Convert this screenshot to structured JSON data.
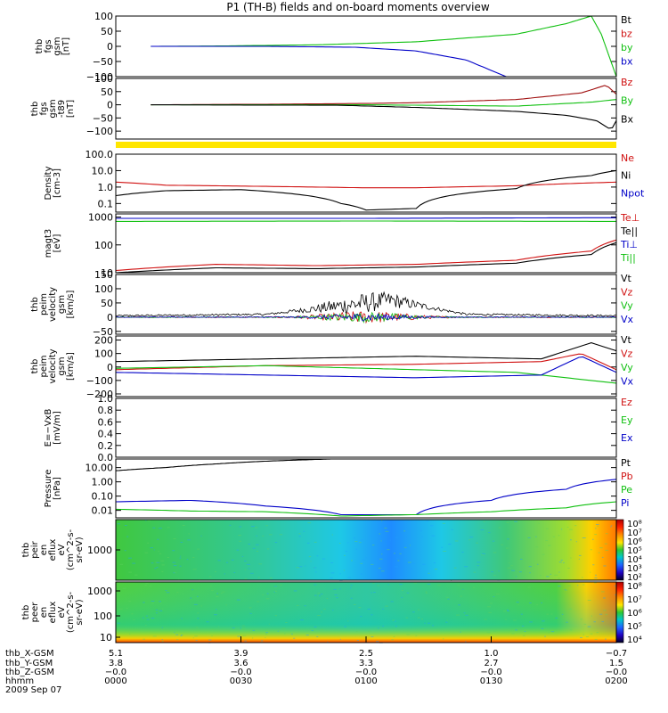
{
  "title": "P1 (TH-B) fields and on-board moments overview",
  "chart_data": [
    {
      "type": "line",
      "ylabel": [
        "thb",
        "fgs",
        "gsm",
        "[nT]"
      ],
      "ylim": [
        -100,
        100
      ],
      "yticks": [
        "100",
        "50",
        "0",
        "−50",
        "−100"
      ],
      "ytick_values": [
        100,
        50,
        0,
        -50,
        -100
      ],
      "legend": [
        {
          "name": "Bt",
          "color": "#000000"
        },
        {
          "name": "bz",
          "color": "#d01010"
        },
        {
          "name": "by",
          "color": "#10c010"
        },
        {
          "name": "bx",
          "color": "#0000c8"
        }
      ],
      "series": [
        {
          "name": "by",
          "color": "#10c010",
          "x": [
            0.07,
            0.2,
            0.4,
            0.6,
            0.8,
            0.9,
            0.95
          ],
          "y": [
            0,
            1,
            5,
            15,
            40,
            75,
            100
          ]
        },
        {
          "name": "bx",
          "color": "#0000c8",
          "x": [
            0.07,
            0.3,
            0.48,
            0.6,
            0.7,
            0.78
          ],
          "y": [
            0,
            0,
            -3,
            -15,
            -45,
            -100
          ]
        },
        {
          "name": "by",
          "color": "#10c010",
          "x": [
            0.95,
            0.97,
            1.0
          ],
          "y": [
            100,
            40,
            -100
          ]
        }
      ]
    },
    {
      "type": "line",
      "ylabel": [
        "thb",
        "fgs",
        "gsm",
        "-t89",
        "[nT]"
      ],
      "ylim": [
        -130,
        100
      ],
      "yticks": [
        "100",
        "50",
        "0",
        "−50",
        "−100"
      ],
      "ytick_values": [
        100,
        50,
        0,
        -50,
        -100
      ],
      "legend": [
        {
          "name": "Bz",
          "color": "#d01010"
        },
        {
          "name": "By",
          "color": "#10c010"
        },
        {
          "name": "Bx",
          "color": "#000000"
        }
      ],
      "series": [
        {
          "name": "Bz",
          "color": "#a01010",
          "x": [
            0.07,
            0.3,
            0.5,
            0.6,
            0.8,
            0.93,
            0.98,
            1.0
          ],
          "y": [
            0,
            2,
            5,
            8,
            20,
            45,
            75,
            40
          ]
        },
        {
          "name": "By",
          "color": "#10c010",
          "x": [
            0.07,
            0.5,
            0.8,
            0.95,
            1.0
          ],
          "y": [
            0,
            0,
            -5,
            10,
            20
          ]
        },
        {
          "name": "Bx",
          "color": "#000000",
          "x": [
            0.07,
            0.45,
            0.6,
            0.8,
            0.9,
            0.96,
            0.99,
            1.0
          ],
          "y": [
            0,
            -2,
            -10,
            -25,
            -40,
            -60,
            -95,
            -60
          ]
        }
      ],
      "quality_bar_color": "#ffe600"
    },
    {
      "type": "line",
      "yscale": "log",
      "ylabel": [
        "Density",
        "[cm-3]"
      ],
      "ylim": [
        0.03,
        100
      ],
      "yticks": [
        "100.0",
        "10.0",
        "1.0",
        "0.1"
      ],
      "ytick_values": [
        100,
        10,
        1,
        0.1
      ],
      "legend": [
        {
          "name": "Ne",
          "color": "#d01010"
        },
        {
          "name": "Ni",
          "color": "#000000"
        },
        {
          "name": "Npot",
          "color": "#0000c8"
        }
      ],
      "series": [
        {
          "name": "Ne",
          "color": "#d01010",
          "x": [
            0.0,
            0.1,
            0.3,
            0.5,
            0.6,
            0.8,
            1.0
          ],
          "y": [
            2.0,
            1.3,
            1.1,
            0.9,
            0.9,
            1.2,
            2.0
          ]
        },
        {
          "name": "Ni",
          "color": "#000000",
          "x": [
            0.0,
            0.1,
            0.25,
            0.35,
            0.45,
            0.5,
            0.6,
            0.8,
            0.95,
            1.0
          ],
          "y": [
            0.3,
            0.6,
            0.7,
            0.4,
            0.1,
            0.04,
            0.05,
            0.8,
            5,
            10
          ]
        }
      ]
    },
    {
      "type": "line",
      "yscale": "log",
      "ylabel": [
        "magt3",
        "[eV]"
      ],
      "ylim": [
        10,
        1300
      ],
      "yticks": [
        "1000",
        "100",
        "10"
      ],
      "ytick_values": [
        1000,
        100,
        10
      ],
      "legend": [
        {
          "name": "Te⊥",
          "color": "#d01010"
        },
        {
          "name": "Te||",
          "color": "#000000"
        },
        {
          "name": "Ti⊥",
          "color": "#0000c8"
        },
        {
          "name": "Ti||",
          "color": "#10c010"
        }
      ],
      "series": [
        {
          "name": "Ti⊥",
          "color": "#0000c8",
          "x": [
            0.0,
            0.5,
            1.0
          ],
          "y": [
            900,
            900,
            950
          ]
        },
        {
          "name": "Ti||",
          "color": "#10c010",
          "x": [
            0.0,
            0.5,
            1.0
          ],
          "y": [
            700,
            720,
            700
          ]
        },
        {
          "name": "Te⊥",
          "color": "#d01010",
          "x": [
            0.0,
            0.2,
            0.4,
            0.6,
            0.8,
            0.95,
            1.0
          ],
          "y": [
            12,
            20,
            18,
            20,
            28,
            60,
            150
          ]
        },
        {
          "name": "Te||",
          "color": "#000000",
          "x": [
            0.0,
            0.2,
            0.4,
            0.6,
            0.8,
            0.95,
            1.0
          ],
          "y": [
            10,
            15,
            14,
            16,
            22,
            45,
            120
          ]
        }
      ]
    },
    {
      "type": "line",
      "ylabel": [
        "thb",
        "peim",
        "velocity",
        "gsm",
        "[km/s]"
      ],
      "ylim": [
        -60,
        150
      ],
      "yticks": [
        "150",
        "100",
        "50",
        "0",
        "−50"
      ],
      "ytick_values": [
        150,
        100,
        50,
        0,
        -50
      ],
      "legend": [
        {
          "name": "Vt",
          "color": "#000000"
        },
        {
          "name": "Vz",
          "color": "#d01010"
        },
        {
          "name": "Vy",
          "color": "#10c010"
        },
        {
          "name": "Vx",
          "color": "#0000c8"
        }
      ],
      "series": [
        {
          "name": "Vt",
          "color": "#000000",
          "x": [
            0.0,
            0.3,
            0.45,
            0.55,
            0.7,
            1.0
          ],
          "y": [
            5,
            10,
            40,
            60,
            10,
            5
          ],
          "noise": 40
        },
        {
          "name": "Vz",
          "color": "#d01010",
          "x": [
            0.0,
            0.5,
            1.0
          ],
          "y": [
            0,
            0,
            0
          ],
          "noise": 25
        },
        {
          "name": "Vy",
          "color": "#10c010",
          "x": [
            0.0,
            0.5,
            1.0
          ],
          "y": [
            0,
            0,
            0
          ],
          "noise": 20
        },
        {
          "name": "Vx",
          "color": "#0000c8",
          "x": [
            0.0,
            0.5,
            1.0
          ],
          "y": [
            0,
            0,
            0
          ],
          "noise": 15
        }
      ]
    },
    {
      "type": "line",
      "ylabel": [
        "thb",
        "peim",
        "velocity",
        "gsm",
        "[km/s]"
      ],
      "ylim": [
        -220,
        230
      ],
      "yticks": [
        "200",
        "100",
        "0",
        "−100",
        "−200"
      ],
      "ytick_values": [
        200,
        100,
        0,
        -100,
        -200
      ],
      "legend": [
        {
          "name": "Vt",
          "color": "#000000"
        },
        {
          "name": "Vz",
          "color": "#d01010"
        },
        {
          "name": "Vy",
          "color": "#10c010"
        },
        {
          "name": "Vx",
          "color": "#0000c8"
        }
      ],
      "series": [
        {
          "name": "Vt",
          "color": "#000000",
          "x": [
            0.0,
            0.3,
            0.6,
            0.85,
            0.95,
            1.0
          ],
          "y": [
            40,
            60,
            80,
            60,
            180,
            120
          ]
        },
        {
          "name": "Vz",
          "color": "#d01010",
          "x": [
            0.0,
            0.3,
            0.6,
            0.85,
            0.93,
            1.0
          ],
          "y": [
            -20,
            10,
            20,
            40,
            100,
            -20
          ]
        },
        {
          "name": "Vy",
          "color": "#10c010",
          "x": [
            0.0,
            0.3,
            0.6,
            0.8,
            0.95,
            1.0
          ],
          "y": [
            -10,
            10,
            -20,
            -40,
            -100,
            -120
          ]
        },
        {
          "name": "Vx",
          "color": "#0000c8",
          "x": [
            0.0,
            0.3,
            0.6,
            0.85,
            0.93,
            1.0
          ],
          "y": [
            -40,
            -60,
            -80,
            -60,
            80,
            -40
          ]
        }
      ]
    },
    {
      "type": "line",
      "ylabel": [
        "E=−VxB",
        "[mV/m]"
      ],
      "ylim": [
        0,
        1
      ],
      "yticks": [
        "1.0",
        "0.8",
        "0.6",
        "0.4",
        "0.2",
        "0.0"
      ],
      "ytick_values": [
        1.0,
        0.8,
        0.6,
        0.4,
        0.2,
        0.0
      ],
      "legend": [
        {
          "name": "Ez",
          "color": "#d01010"
        },
        {
          "name": "Ey",
          "color": "#10c010"
        },
        {
          "name": "Ex",
          "color": "#0000c8"
        }
      ],
      "series": []
    },
    {
      "type": "line",
      "yscale": "log",
      "ylabel": [
        "Pressure",
        "[nPa]"
      ],
      "ylim": [
        0.003,
        40
      ],
      "yticks": [
        "10.00",
        "1.00",
        "0.10",
        "0.01"
      ],
      "ytick_values": [
        10,
        1,
        0.1,
        0.01
      ],
      "legend": [
        {
          "name": "Pt",
          "color": "#000000"
        },
        {
          "name": "Pb",
          "color": "#d01010"
        },
        {
          "name": "Pe",
          "color": "#10c010"
        },
        {
          "name": "Pi",
          "color": "#0000c8"
        }
      ],
      "series": [
        {
          "name": "Pt",
          "color": "#000000",
          "x": [
            0.0,
            0.1,
            0.2,
            0.3,
            0.43
          ],
          "y": [
            6,
            10,
            18,
            28,
            40
          ]
        },
        {
          "name": "Pi",
          "color": "#0000c8",
          "x": [
            0.0,
            0.15,
            0.3,
            0.45,
            0.6,
            0.75,
            0.9,
            1.0
          ],
          "y": [
            0.04,
            0.05,
            0.02,
            0.005,
            0.005,
            0.05,
            0.3,
            1.5
          ]
        },
        {
          "name": "Pe",
          "color": "#10c010",
          "x": [
            0.0,
            0.15,
            0.3,
            0.45,
            0.6,
            0.75,
            0.9,
            1.0
          ],
          "y": [
            0.012,
            0.009,
            0.008,
            0.004,
            0.005,
            0.008,
            0.015,
            0.04
          ]
        }
      ]
    },
    {
      "type": "heatmap",
      "ylabel": [
        "thb",
        "peir",
        "en",
        "eflux",
        "eV",
        "(cm^2-s-",
        "sr-eV)"
      ],
      "yticks": [
        "1000"
      ],
      "colorbar_ticks": [
        "10⁸",
        "10⁷",
        "10⁶",
        "10⁵",
        "10⁴",
        "10³",
        "10²"
      ]
    },
    {
      "type": "heatmap",
      "ylabel": [
        "thb",
        "peer",
        "en",
        "eflux",
        "eV",
        "(cm^2-s-",
        "sr-eV)"
      ],
      "yticks": [
        "1000",
        "100",
        "10"
      ],
      "colorbar_ticks": [
        "10⁸",
        "10⁷",
        "10⁶",
        "10⁵",
        "10⁴"
      ]
    }
  ],
  "x_axis": {
    "row_labels": [
      "thb_X-GSM",
      "thb_Y-GSM",
      "thb_Z-GSM",
      "hhmm"
    ],
    "date": "2009 Sep 07",
    "ticks": [
      {
        "values": [
          "5.1",
          "3.8",
          "−0.0",
          "0000"
        ]
      },
      {
        "values": [
          "3.9",
          "3.6",
          "−0.0",
          "0030"
        ]
      },
      {
        "values": [
          "2.5",
          "3.3",
          "−0.0",
          "0100"
        ]
      },
      {
        "values": [
          "1.0",
          "2.7",
          "−0.0",
          "0130"
        ]
      },
      {
        "values": [
          "−0.7",
          "1.5",
          "−0.0",
          "0200"
        ]
      }
    ]
  }
}
